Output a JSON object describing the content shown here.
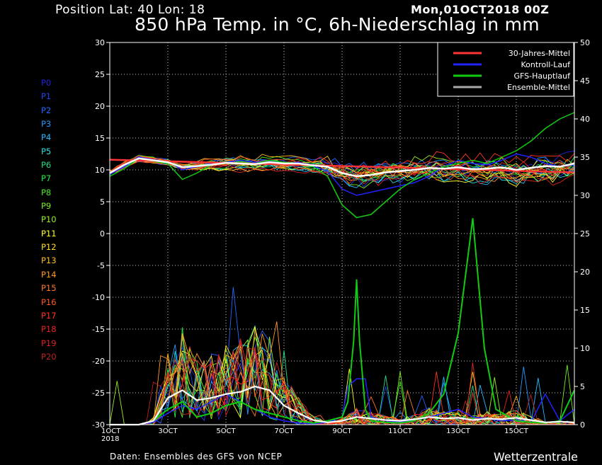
{
  "header": {
    "position": "Position   Lat: 40 Lon: 18",
    "date": "Mon,01OCT2018 00Z",
    "title": "850 hPa Temp. in °C, 6h-Niederschlag in mm"
  },
  "footer": {
    "source": "Daten: Ensembles des GFS von NCEP",
    "brand": "Wetterzentrale"
  },
  "members": [
    {
      "label": "P0",
      "color": "#2222dd"
    },
    {
      "label": "P1",
      "color": "#2244ee"
    },
    {
      "label": "P2",
      "color": "#2266ff"
    },
    {
      "label": "P3",
      "color": "#2299ff"
    },
    {
      "label": "P4",
      "color": "#22bbff"
    },
    {
      "label": "P5",
      "color": "#22dddd"
    },
    {
      "label": "P6",
      "color": "#22dd88"
    },
    {
      "label": "P7",
      "color": "#22ee44"
    },
    {
      "label": "P8",
      "color": "#44ee22"
    },
    {
      "label": "P9",
      "color": "#77ee22"
    },
    {
      "label": "P10",
      "color": "#99ee22"
    },
    {
      "label": "P11",
      "color": "#ffff22"
    },
    {
      "label": "P12",
      "color": "#ffdd22"
    },
    {
      "label": "P13",
      "color": "#ffbb22"
    },
    {
      "label": "P14",
      "color": "#ff9922"
    },
    {
      "label": "P15",
      "color": "#ff7722"
    },
    {
      "label": "P16",
      "color": "#ff5522"
    },
    {
      "label": "P17",
      "color": "#ff3322"
    },
    {
      "label": "P18",
      "color": "#ee2222"
    },
    {
      "label": "P19",
      "color": "#dd2222"
    },
    {
      "label": "P20",
      "color": "#bb2222"
    }
  ],
  "chart_data": {
    "type": "line",
    "title": "850 hPa Temp. in °C, 6h-Niederschlag in mm",
    "x_ticks": [
      "1OCT\n2018",
      "3OCT",
      "5OCT",
      "7OCT",
      "9OCT",
      "11OCT",
      "13OCT",
      "15OCT"
    ],
    "x_range_days": [
      1,
      17
    ],
    "y_left": {
      "range": [
        -30,
        30
      ],
      "ticks": [
        30,
        25,
        20,
        15,
        10,
        5,
        0,
        -5,
        -10,
        -15,
        -20,
        -25,
        -30
      ]
    },
    "y_right": {
      "range": [
        0,
        50
      ],
      "ticks": [
        50,
        45,
        40,
        35,
        30,
        25,
        20,
        15,
        10,
        5,
        0
      ]
    },
    "grid": true,
    "legend": {
      "placement": "top-right",
      "entries": [
        {
          "name": "30-Jahres-Mittel",
          "color": "#ff3333"
        },
        {
          "name": "Kontroll-Lauf",
          "color": "#2222ff"
        },
        {
          "name": "GFS-Hauptlauf",
          "color": "#11cc11"
        },
        {
          "name": "Ensemble-Mittel",
          "color": "#aaaaaa"
        }
      ]
    },
    "temperature_series": {
      "thirty_year_mean": {
        "x": [
          1,
          17
        ],
        "y": [
          11.6,
          9.6
        ]
      },
      "ensemble_mean": {
        "x": [
          1,
          1.5,
          2,
          2.5,
          3,
          3.5,
          4,
          4.5,
          5,
          5.5,
          6,
          6.5,
          7,
          7.5,
          8,
          8.5,
          9,
          9.5,
          10,
          10.5,
          11,
          11.5,
          12,
          12.5,
          13,
          13.5,
          14,
          14.5,
          15,
          15.5,
          16,
          16.5,
          17
        ],
        "y": [
          9.5,
          10.8,
          11.8,
          11.5,
          11.2,
          10.4,
          10.6,
          10.8,
          11.1,
          11.0,
          10.9,
          11.2,
          11.0,
          11.0,
          10.7,
          10.5,
          9.5,
          9.0,
          9.2,
          9.6,
          9.8,
          10.0,
          10.3,
          10.2,
          10.4,
          10.1,
          10.2,
          10.4,
          10.0,
          10.3,
          10.6,
          10.5,
          11.0
        ]
      },
      "control_run": {
        "x": [
          1,
          1.5,
          2,
          2.5,
          3,
          3.5,
          4,
          4.5,
          5,
          5.5,
          6,
          6.5,
          7,
          7.5,
          8,
          8.5,
          9,
          9.5,
          10,
          10.5,
          11,
          11.5,
          12,
          12.5,
          13,
          13.5,
          14,
          14.5,
          15,
          15.5,
          16,
          16.5,
          17
        ],
        "y": [
          9.3,
          10.5,
          12.0,
          11.6,
          11.3,
          10.0,
          10.5,
          11.0,
          11.2,
          11.5,
          11.2,
          11.4,
          11.0,
          11.2,
          10.6,
          9.8,
          7.0,
          6.0,
          6.5,
          7.0,
          7.5,
          8.0,
          9.0,
          10.5,
          11.5,
          11.0,
          10.8,
          11.5,
          12.5,
          12.0,
          11.0,
          10.5,
          10.8
        ]
      },
      "gfs_main_run": {
        "x": [
          1,
          1.5,
          2,
          2.5,
          3,
          3.5,
          4,
          4.5,
          5,
          5.5,
          6,
          6.5,
          7,
          7.5,
          8,
          8.5,
          9,
          9.5,
          10,
          10.5,
          11,
          11.5,
          12,
          12.5,
          13,
          13.5,
          14,
          14.5,
          15,
          15.5,
          16,
          16.5,
          17
        ],
        "y": [
          9.0,
          10.2,
          11.8,
          11.3,
          11.0,
          8.5,
          9.5,
          10.8,
          11.0,
          11.3,
          11.0,
          11.5,
          11.2,
          11.0,
          10.5,
          9.0,
          4.5,
          2.5,
          3.0,
          5.0,
          7.0,
          8.5,
          9.5,
          10.5,
          11.0,
          11.5,
          11.0,
          12.0,
          13.0,
          14.5,
          16.5,
          18.0,
          19.0
        ]
      }
    },
    "precipitation_series": {
      "ensemble_mean": {
        "x": [
          1,
          2,
          2.5,
          3,
          3.5,
          4,
          4.5,
          5,
          5.5,
          6,
          6.5,
          7,
          7.5,
          8,
          8.5,
          9,
          9.5,
          10,
          10.5,
          11,
          11.5,
          12,
          12.5,
          13,
          13.5,
          14,
          14.5,
          15,
          15.5,
          16,
          16.5,
          17
        ],
        "y": [
          0,
          0,
          0.5,
          3.5,
          4.5,
          3.2,
          3.5,
          4.0,
          4.3,
          5.0,
          4.5,
          2.5,
          1.5,
          0.6,
          0.3,
          0.5,
          1.0,
          0.8,
          0.6,
          0.5,
          0.7,
          1.0,
          0.8,
          0.9,
          0.6,
          0.8,
          0.7,
          0.9,
          0.6,
          0.3,
          0.4,
          0.3
        ]
      },
      "gfs_main_run": {
        "x": [
          1,
          2,
          2.5,
          3,
          3.5,
          4,
          4.5,
          5,
          5.5,
          6,
          6.5,
          7,
          7.5,
          8,
          8.5,
          9,
          9.2,
          9.4,
          9.5,
          9.6,
          9.8,
          10,
          10.5,
          11,
          11.5,
          12,
          12.5,
          13,
          13.5,
          13.9,
          14.3,
          15,
          15.5,
          16,
          16.5,
          17
        ],
        "y": [
          0,
          0,
          0.5,
          2.0,
          3.0,
          1.0,
          1.5,
          2.5,
          3.0,
          2.0,
          1.5,
          1.0,
          0.5,
          0.2,
          0.5,
          1.0,
          3.0,
          11,
          19,
          11,
          2.0,
          0.5,
          0.3,
          0.2,
          0.5,
          1.5,
          4.0,
          12,
          27,
          10,
          2.0,
          0.5,
          0.3,
          0.2,
          0.5,
          4.5
        ]
      },
      "control_run": {
        "x": [
          1,
          2,
          2.5,
          3,
          3.5,
          4,
          4.5,
          5,
          5.5,
          6,
          6.5,
          7,
          7.5,
          8,
          8.5,
          9,
          9.2,
          9.5,
          9.8,
          10,
          10.5,
          11,
          11.5,
          12,
          12.5,
          13,
          13.5,
          14,
          14.5,
          15,
          15.5,
          16,
          16.5,
          17
        ],
        "y": [
          0,
          0,
          0.3,
          1.5,
          2.5,
          2.0,
          3.0,
          4.0,
          3.0,
          2.0,
          1.0,
          0.5,
          0.2,
          0.1,
          0.3,
          1.0,
          5.0,
          6.0,
          6.0,
          1.0,
          0.5,
          0.4,
          0.6,
          1.0,
          1.5,
          2.0,
          1.0,
          0.8,
          0.5,
          0.6,
          0.3,
          4.0,
          0.5,
          2.0
        ]
      }
    }
  }
}
